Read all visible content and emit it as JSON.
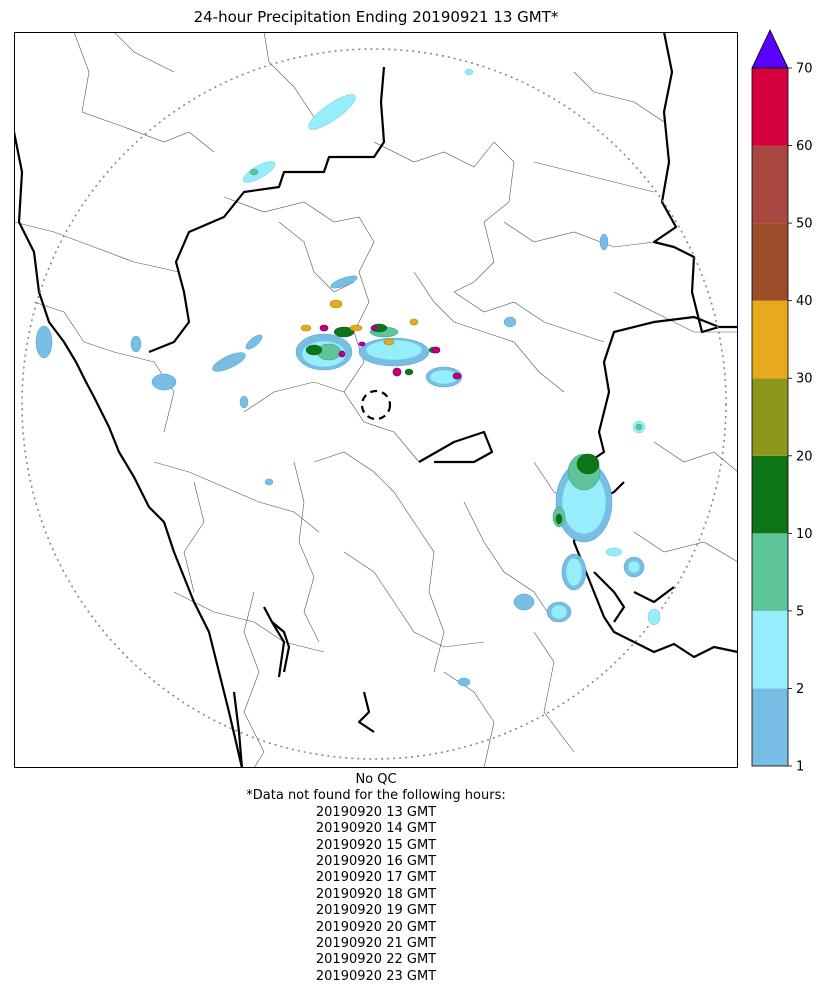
{
  "title": "24-hour Precipitation Ending 20190921 13 GMT*",
  "colorbar": {
    "levels": [
      1,
      2,
      5,
      10,
      20,
      30,
      40,
      50,
      60,
      70
    ],
    "colors": [
      "#78bde4",
      "#96eefc",
      "#5ec49a",
      "#0e7418",
      "#8c961a",
      "#e8aa1c",
      "#9c4e28",
      "#a84840",
      "#d40040"
    ],
    "extend_color": "#5a00ff",
    "tick_labels": [
      "1",
      "2",
      "5",
      "10",
      "20",
      "30",
      "40",
      "50",
      "60",
      "70"
    ]
  },
  "footnote": {
    "qc": "No QC",
    "missing_header": "*Data not found for the following hours:",
    "missing_hours": [
      "20190920 13 GMT",
      "20190920 14 GMT",
      "20190920 15 GMT",
      "20190920 16 GMT",
      "20190920 17 GMT",
      "20190920 18 GMT",
      "20190920 19 GMT",
      "20190920 20 GMT",
      "20190920 21 GMT",
      "20190920 22 GMT",
      "20190920 23 GMT"
    ]
  }
}
